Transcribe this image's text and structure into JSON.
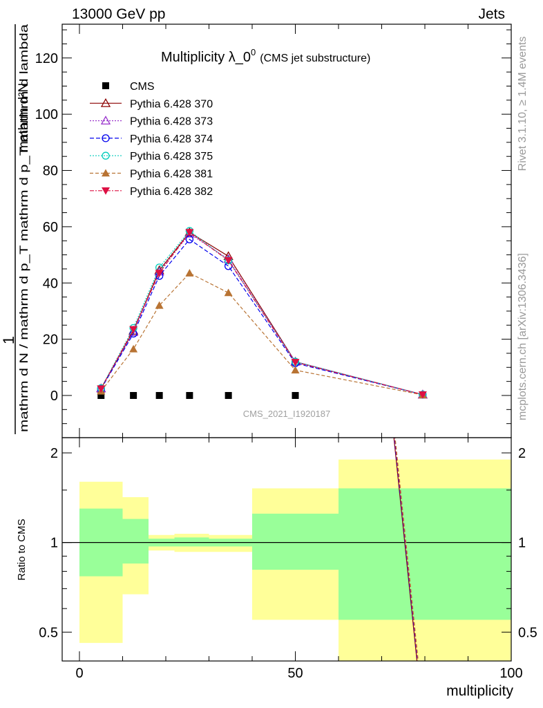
{
  "header": {
    "left": "13000 GeV pp",
    "right": "Jets"
  },
  "side": {
    "rivet": "Rivet 3.1.10, ≥ 1.4M events",
    "mcplots": "mcplots.cern.ch [arXiv:1306.3436]"
  },
  "colors": {
    "cms": "#000000",
    "p370": "#8b0000",
    "p373": "#9933cc",
    "p374": "#0000ee",
    "p375": "#00ccbb",
    "p381": "#b87333",
    "p382": "#dd1144",
    "band_inner": "#99ff99",
    "band_outer": "#ffff99"
  },
  "chart_data": [
    {
      "type": "line",
      "title_main": "Multiplicity λ_0",
      "title_sup": "0",
      "title_note": "(CMS jet substructure)",
      "watermark": "CMS_2021_I1920187",
      "ylabel_top": "1",
      "ylabel_bottom": "mathrm d N / mathrm d p_T mathrm d p_T mathrm d lambda",
      "ylabel_frac_num": "mathrm d²N",
      "ylim": [
        -15,
        132
      ],
      "yticks": [
        0,
        20,
        40,
        60,
        80,
        100,
        120
      ],
      "xlim": [
        -4,
        100
      ],
      "grid": false,
      "legend_position": "top-left",
      "x": [
        5,
        12.5,
        18.5,
        25.5,
        34.5,
        50,
        79.5
      ],
      "series": [
        {
          "name": "CMS",
          "key": "cms",
          "style": "square",
          "values": [
            0,
            0,
            0,
            0,
            0,
            0,
            null
          ]
        },
        {
          "name": "Pythia 6.428 370",
          "key": "p370",
          "style": "tri-open",
          "values": [
            2.5,
            23.0,
            44.5,
            58.0,
            49.5,
            12.0,
            0.3
          ]
        },
        {
          "name": "Pythia 6.428 373",
          "key": "p373",
          "style": "tri-open",
          "values": [
            2.5,
            22.5,
            44.0,
            57.5,
            48.5,
            12.0,
            0.3
          ]
        },
        {
          "name": "Pythia 6.428 374",
          "key": "p374",
          "style": "circle-open",
          "values": [
            2.3,
            22.0,
            42.5,
            55.5,
            46.0,
            11.5,
            0.3
          ]
        },
        {
          "name": "Pythia 6.428 375",
          "key": "p375",
          "style": "circle-open",
          "values": [
            2.6,
            24.0,
            45.5,
            58.5,
            48.0,
            12.0,
            0.3
          ]
        },
        {
          "name": "Pythia 6.428 381",
          "key": "p381",
          "style": "tri-filled",
          "values": [
            1.5,
            16.5,
            32.0,
            43.5,
            36.5,
            9.0,
            0.2
          ]
        },
        {
          "name": "Pythia 6.428 382",
          "key": "p382",
          "style": "tri-down-filled",
          "values": [
            2.4,
            23.5,
            43.5,
            58.0,
            48.0,
            11.8,
            0.3
          ]
        }
      ]
    },
    {
      "type": "area",
      "ylabel": "Ratio to CMS",
      "xlabel": "multiplicity",
      "ylim": [
        0.4,
        2.25
      ],
      "yticks": [
        "0.5",
        "1",
        "2"
      ],
      "ytick_values": [
        0.5,
        1,
        2
      ],
      "xticks": [
        "0",
        "50",
        "100"
      ],
      "xtick_values": [
        0,
        50,
        100
      ],
      "xlim": [
        -4,
        100
      ],
      "reference": 1,
      "bins": [
        {
          "x0": 0,
          "x1": 10,
          "inner": [
            0.77,
            1.3
          ],
          "outer": [
            0.46,
            1.6
          ]
        },
        {
          "x0": 10,
          "x1": 16,
          "inner": [
            0.85,
            1.2
          ],
          "outer": [
            0.67,
            1.42
          ]
        },
        {
          "x0": 16,
          "x1": 22,
          "inner": [
            0.97,
            1.03
          ],
          "outer": [
            0.94,
            1.06
          ]
        },
        {
          "x0": 22,
          "x1": 30,
          "inner": [
            0.97,
            1.04
          ],
          "outer": [
            0.93,
            1.07
          ]
        },
        {
          "x0": 30,
          "x1": 40,
          "inner": [
            0.97,
            1.03
          ],
          "outer": [
            0.93,
            1.06
          ]
        },
        {
          "x0": 40,
          "x1": 60,
          "inner": [
            0.81,
            1.25
          ],
          "outer": [
            0.55,
            1.52
          ]
        },
        {
          "x0": 60,
          "x1": 100,
          "inner": [
            0.55,
            1.52
          ],
          "outer": [
            0.34,
            1.9
          ]
        }
      ],
      "ratio_line": {
        "x": [
          72.5,
          78.5
        ],
        "y": [
          2.5,
          0.36
        ]
      }
    }
  ]
}
